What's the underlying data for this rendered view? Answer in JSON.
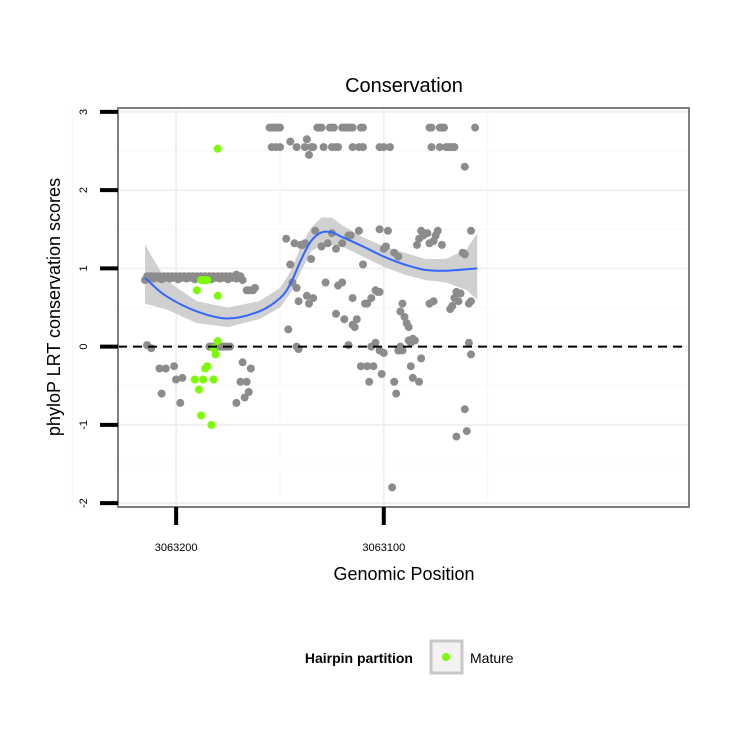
{
  "chart_data": {
    "type": "scatter",
    "title": "Conservation",
    "xlabel": "Genomic Position",
    "ylabel": "phyloP LRT conservation scores",
    "x_reversed": true,
    "xlim": [
      3063228,
      3062953
    ],
    "ylim": [
      -2.05,
      3.05
    ],
    "x_ticks": [
      3063200,
      3063100
    ],
    "x_tick_labels": [
      "3063200",
      "3063100"
    ],
    "y_ticks": [
      -2,
      -1,
      0,
      1,
      2,
      3
    ],
    "y_tick_labels": [
      "-2",
      "-1",
      "0",
      "1",
      "2",
      "3"
    ],
    "grid": true,
    "reference_line": {
      "y": 0,
      "style": "dashed",
      "color": "#000000"
    },
    "legend": {
      "title": "Hairpin partition",
      "position": "bottom",
      "entries": [
        {
          "label": "Mature",
          "color": "#7cfc00"
        }
      ]
    },
    "colors": {
      "other": "#8c8c8c",
      "mature": "#7cfc00",
      "smooth": "#3366ff",
      "ribbon": "#c8c8c8"
    },
    "series": [
      {
        "group": "other",
        "points": [
          [
            3063215,
            0.85
          ],
          [
            3063214,
            0.9
          ],
          [
            3063213,
            0.88
          ],
          [
            3063212,
            0.9
          ],
          [
            3063211,
            0.87
          ],
          [
            3063210,
            0.9
          ],
          [
            3063209,
            0.88
          ],
          [
            3063208,
            0.9
          ],
          [
            3063207,
            0.86
          ],
          [
            3063206,
            0.9
          ],
          [
            3063205,
            0.88
          ],
          [
            3063204,
            0.9
          ],
          [
            3063203,
            0.87
          ],
          [
            3063202,
            0.9
          ],
          [
            3063201,
            0.88
          ],
          [
            3063200,
            0.9
          ],
          [
            3063199,
            0.86
          ],
          [
            3063198,
            0.9
          ],
          [
            3063197,
            0.88
          ],
          [
            3063196,
            0.9
          ],
          [
            3063195,
            0.87
          ],
          [
            3063194,
            0.9
          ],
          [
            3063193,
            0.88
          ],
          [
            3063192,
            0.9
          ],
          [
            3063191,
            0.86
          ],
          [
            3063190,
            0.9
          ],
          [
            3063189,
            0.88
          ],
          [
            3063188,
            0.9
          ],
          [
            3063187,
            0.87
          ],
          [
            3063186,
            0.9
          ],
          [
            3063185,
            0.88
          ],
          [
            3063184,
            0.9
          ],
          [
            3063183,
            0.86
          ],
          [
            3063182,
            0.9
          ],
          [
            3063181,
            0.88
          ],
          [
            3063180,
            0.9
          ],
          [
            3063179,
            0.87
          ],
          [
            3063178,
            0.9
          ],
          [
            3063177,
            0.88
          ],
          [
            3063176,
            0.9
          ],
          [
            3063175,
            0.86
          ],
          [
            3063174,
            0.9
          ],
          [
            3063173,
            0.88
          ],
          [
            3063172,
            0.9
          ],
          [
            3063171,
            0.87
          ],
          [
            3063214,
            0.02
          ],
          [
            3063212,
            -0.02
          ],
          [
            3063208,
            -0.28
          ],
          [
            3063207,
            -0.6
          ],
          [
            3063205,
            -0.28
          ],
          [
            3063201,
            -0.25
          ],
          [
            3063200,
            -0.42
          ],
          [
            3063198,
            -0.72
          ],
          [
            3063197,
            -0.4
          ],
          [
            3063184,
            0.0
          ],
          [
            3063183,
            0.0
          ],
          [
            3063182,
            0.0
          ],
          [
            3063181,
            0.0
          ],
          [
            3063180,
            0.0
          ],
          [
            3063179,
            0.0
          ],
          [
            3063178,
            0.0
          ],
          [
            3063177,
            0.0
          ],
          [
            3063176,
            0.0
          ],
          [
            3063175,
            0.0
          ],
          [
            3063174,
            0.0
          ],
          [
            3063171,
            0.92
          ],
          [
            3063170,
            0.88
          ],
          [
            3063169,
            0.9
          ],
          [
            3063168,
            0.85
          ],
          [
            3063171,
            -0.72
          ],
          [
            3063169,
            -0.45
          ],
          [
            3063168,
            -0.2
          ],
          [
            3063167,
            -0.65
          ],
          [
            3063166,
            -0.45
          ],
          [
            3063165,
            -0.58
          ],
          [
            3063164,
            -0.28
          ],
          [
            3063166,
            0.72
          ],
          [
            3063165,
            0.72
          ],
          [
            3063164,
            0.72
          ],
          [
            3063163,
            0.72
          ],
          [
            3063162,
            0.75
          ],
          [
            3063155,
            2.8
          ],
          [
            3063154,
            2.8
          ],
          [
            3063153,
            2.8
          ],
          [
            3063152,
            2.8
          ],
          [
            3063151,
            2.8
          ],
          [
            3063150,
            2.8
          ],
          [
            3063154,
            2.55
          ],
          [
            3063152,
            2.55
          ],
          [
            3063150,
            2.55
          ],
          [
            3063147,
            1.38
          ],
          [
            3063145,
            1.05
          ],
          [
            3063144,
            0.82
          ],
          [
            3063143,
            1.32
          ],
          [
            3063142,
            0.75
          ],
          [
            3063141,
            0.58
          ],
          [
            3063140,
            1.3
          ],
          [
            3063139,
            1.3
          ],
          [
            3063138,
            1.32
          ],
          [
            3063137,
            0.65
          ],
          [
            3063136,
            0.55
          ],
          [
            3063135,
            1.12
          ],
          [
            3063134,
            0.62
          ],
          [
            3063133,
            1.48
          ],
          [
            3063146,
            0.22
          ],
          [
            3063142,
            0.0
          ],
          [
            3063141,
            -0.03
          ],
          [
            3063145,
            2.62
          ],
          [
            3063142,
            2.55
          ],
          [
            3063138,
            2.55
          ],
          [
            3063137,
            2.65
          ],
          [
            3063136,
            2.45
          ],
          [
            3063135,
            2.55
          ],
          [
            3063134,
            2.55
          ],
          [
            3063132,
            2.8
          ],
          [
            3063131,
            2.8
          ],
          [
            3063130,
            2.8
          ],
          [
            3063126,
            2.8
          ],
          [
            3063125,
            2.8
          ],
          [
            3063124,
            2.8
          ],
          [
            3063120,
            2.8
          ],
          [
            3063119,
            2.8
          ],
          [
            3063118,
            2.8
          ],
          [
            3063117,
            2.8
          ],
          [
            3063116,
            2.8
          ],
          [
            3063115,
            2.8
          ],
          [
            3063111,
            2.8
          ],
          [
            3063110,
            2.8
          ],
          [
            3063129,
            2.55
          ],
          [
            3063125,
            2.55
          ],
          [
            3063123,
            2.55
          ],
          [
            3063122,
            2.55
          ],
          [
            3063115,
            2.55
          ],
          [
            3063112,
            2.55
          ],
          [
            3063110,
            2.55
          ],
          [
            3063130,
            1.28
          ],
          [
            3063128,
            0.82
          ],
          [
            3063127,
            1.32
          ],
          [
            3063125,
            1.45
          ],
          [
            3063123,
            1.25
          ],
          [
            3063122,
            0.78
          ],
          [
            3063120,
            1.32
          ],
          [
            3063117,
            1.42
          ],
          [
            3063116,
            1.42
          ],
          [
            3063115,
            0.62
          ],
          [
            3063112,
            1.48
          ],
          [
            3063110,
            1.05
          ],
          [
            3063109,
            0.55
          ],
          [
            3063108,
            0.55
          ],
          [
            3063106,
            0.62
          ],
          [
            3063104,
            0.72
          ],
          [
            3063103,
            0.7
          ],
          [
            3063102,
            0.7
          ],
          [
            3063123,
            0.42
          ],
          [
            3063120,
            0.82
          ],
          [
            3063119,
            0.35
          ],
          [
            3063117,
            0.02
          ],
          [
            3063115,
            0.28
          ],
          [
            3063114,
            0.25
          ],
          [
            3063113,
            0.35
          ],
          [
            3063111,
            -0.25
          ],
          [
            3063108,
            -0.25
          ],
          [
            3063107,
            -0.45
          ],
          [
            3063106,
            0.0
          ],
          [
            3063105,
            -0.25
          ],
          [
            3063104,
            0.05
          ],
          [
            3063102,
            -0.05
          ],
          [
            3063101,
            -0.35
          ],
          [
            3063100,
            -0.08
          ],
          [
            3063102,
            2.55
          ],
          [
            3063100,
            2.55
          ],
          [
            3063097,
            2.55
          ],
          [
            3063102,
            1.5
          ],
          [
            3063100,
            1.25
          ],
          [
            3063099,
            1.28
          ],
          [
            3063098,
            1.48
          ],
          [
            3063095,
            1.2
          ],
          [
            3063093,
            1.15
          ],
          [
            3063092,
            0.45
          ],
          [
            3063091,
            0.55
          ],
          [
            3063090,
            0.38
          ],
          [
            3063089,
            0.3
          ],
          [
            3063088,
            0.25
          ],
          [
            3063087,
            0.05
          ],
          [
            3063086,
            0.1
          ],
          [
            3063085,
            0.08
          ],
          [
            3063096,
            -1.8
          ],
          [
            3063095,
            -0.45
          ],
          [
            3063094,
            -0.6
          ],
          [
            3063093,
            -0.05
          ],
          [
            3063092,
            0.0
          ],
          [
            3063091,
            -0.05
          ],
          [
            3063088,
            0.08
          ],
          [
            3063087,
            -0.25
          ],
          [
            3063086,
            -0.4
          ],
          [
            3063083,
            -0.45
          ],
          [
            3063082,
            -0.15
          ],
          [
            3063084,
            1.3
          ],
          [
            3063083,
            1.38
          ],
          [
            3063082,
            1.48
          ],
          [
            3063081,
            1.42
          ],
          [
            3063080,
            1.45
          ],
          [
            3063079,
            1.45
          ],
          [
            3063078,
            1.32
          ],
          [
            3063076,
            1.35
          ],
          [
            3063075,
            1.42
          ],
          [
            3063074,
            1.48
          ],
          [
            3063072,
            1.3
          ],
          [
            3063078,
            0.55
          ],
          [
            3063076,
            0.58
          ],
          [
            3063078,
            2.8
          ],
          [
            3063077,
            2.8
          ],
          [
            3063073,
            2.8
          ],
          [
            3063072,
            2.8
          ],
          [
            3063071,
            2.8
          ],
          [
            3063077,
            2.55
          ],
          [
            3063073,
            2.55
          ],
          [
            3063070,
            2.55
          ],
          [
            3063069,
            2.55
          ],
          [
            3063068,
            2.55
          ],
          [
            3063067,
            2.55
          ],
          [
            3063066,
            2.55
          ],
          [
            3063068,
            0.48
          ],
          [
            3063067,
            0.52
          ],
          [
            3063066,
            0.62
          ],
          [
            3063065,
            0.7
          ],
          [
            3063064,
            0.58
          ],
          [
            3063063,
            0.68
          ],
          [
            3063062,
            1.2
          ],
          [
            3063061,
            1.18
          ],
          [
            3063059,
            0.55
          ],
          [
            3063058,
            0.58
          ],
          [
            3063065,
            -1.15
          ],
          [
            3063061,
            -0.8
          ],
          [
            3063060,
            -1.08
          ],
          [
            3063059,
            0.05
          ],
          [
            3063058,
            -0.1
          ],
          [
            3063061,
            2.3
          ],
          [
            3063058,
            1.48
          ],
          [
            3063056,
            2.8
          ]
        ]
      },
      {
        "group": "mature",
        "name": "Mature",
        "points": [
          [
            3063190,
            0.72
          ],
          [
            3063188,
            0.85
          ],
          [
            3063187,
            0.85
          ],
          [
            3063186,
            0.85
          ],
          [
            3063185,
            0.85
          ],
          [
            3063191,
            -0.42
          ],
          [
            3063189,
            -0.55
          ],
          [
            3063188,
            -0.88
          ],
          [
            3063187,
            -0.42
          ],
          [
            3063186,
            -0.28
          ],
          [
            3063185,
            -0.25
          ],
          [
            3063183,
            -1.0
          ],
          [
            3063182,
            -0.42
          ],
          [
            3063182,
            -0.02
          ],
          [
            3063181,
            -0.1
          ],
          [
            3063180,
            0.07
          ],
          [
            3063180,
            2.53
          ],
          [
            3063180,
            0.65
          ]
        ]
      }
    ],
    "smooth": [
      [
        3063215,
        0.88
      ],
      [
        3063205,
        0.65
      ],
      [
        3063190,
        0.45
      ],
      [
        3063175,
        0.36
      ],
      [
        3063160,
        0.45
      ],
      [
        3063150,
        0.62
      ],
      [
        3063145,
        0.8
      ],
      [
        3063140,
        1.1
      ],
      [
        3063135,
        1.35
      ],
      [
        3063130,
        1.46
      ],
      [
        3063125,
        1.46
      ],
      [
        3063120,
        1.4
      ],
      [
        3063110,
        1.28
      ],
      [
        3063100,
        1.15
      ],
      [
        3063090,
        1.05
      ],
      [
        3063080,
        0.98
      ],
      [
        3063070,
        0.97
      ],
      [
        3063060,
        0.99
      ],
      [
        3063055,
        1.0
      ]
    ],
    "ribbon": [
      [
        3063215,
        0.55,
        1.3
      ],
      [
        3063205,
        0.48,
        0.85
      ],
      [
        3063190,
        0.3,
        0.58
      ],
      [
        3063175,
        0.25,
        0.5
      ],
      [
        3063160,
        0.35,
        0.58
      ],
      [
        3063150,
        0.5,
        0.75
      ],
      [
        3063145,
        0.68,
        0.95
      ],
      [
        3063140,
        0.95,
        1.28
      ],
      [
        3063135,
        1.22,
        1.52
      ],
      [
        3063130,
        1.3,
        1.65
      ],
      [
        3063125,
        1.3,
        1.65
      ],
      [
        3063120,
        1.28,
        1.55
      ],
      [
        3063110,
        1.15,
        1.4
      ],
      [
        3063100,
        1.02,
        1.28
      ],
      [
        3063090,
        0.92,
        1.2
      ],
      [
        3063080,
        0.85,
        1.12
      ],
      [
        3063070,
        0.82,
        1.12
      ],
      [
        3063060,
        0.72,
        1.25
      ],
      [
        3063055,
        0.6,
        1.45
      ]
    ]
  }
}
